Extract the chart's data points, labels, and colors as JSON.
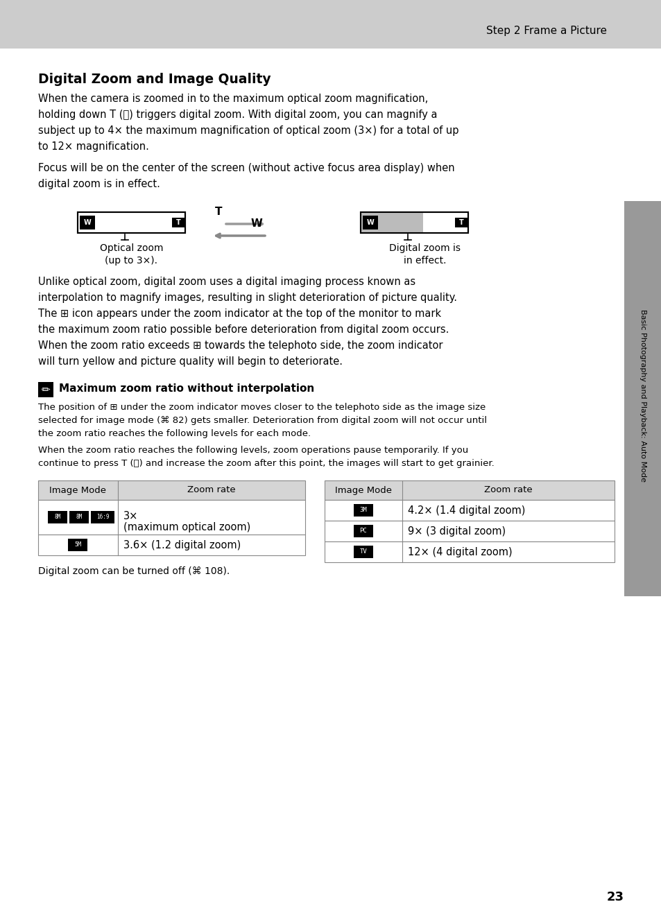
{
  "page_bg": "#ffffff",
  "header_bg": "#cccccc",
  "header_text": "Step 2 Frame a Picture",
  "sidebar_bg": "#999999",
  "sidebar_text": "Basic Photography and Playback: Auto Mode",
  "page_number": "23",
  "section_title": "Digital Zoom and Image Quality",
  "para1": [
    "When the camera is zoomed in to the maximum optical zoom magnification,",
    "holding down T (ⓑ) triggers digital zoom. With digital zoom, you can magnify a",
    "subject up to 4× the maximum magnification of optical zoom (3×) for a total of up",
    "to 12× magnification."
  ],
  "para2": [
    "Focus will be on the center of the screen (without active focus area display) when",
    "digital zoom is in effect."
  ],
  "para3": [
    "Unlike optical zoom, digital zoom uses a digital imaging process known as",
    "interpolation to magnify images, resulting in slight deterioration of picture quality.",
    "The ⊞ icon appears under the zoom indicator at the top of the monitor to mark",
    "the maximum zoom ratio possible before deterioration from digital zoom occurs.",
    "When the zoom ratio exceeds ⊞ towards the telephoto side, the zoom indicator",
    "will turn yellow and picture quality will begin to deteriorate."
  ],
  "note_title": "Maximum zoom ratio without interpolation",
  "note_para1": [
    "The position of ⊞ under the zoom indicator moves closer to the telephoto side as the image size",
    "selected for image mode (⌘ 82) gets smaller. Deterioration from digital zoom will not occur until",
    "the zoom ratio reaches the following levels for each mode."
  ],
  "note_para2": [
    "When the zoom ratio reaches the following levels, zoom operations pause temporarily. If you",
    "continue to press T (ⓑ) and increase the zoom after this point, the images will start to get grainier."
  ],
  "table1_icons_row1": [
    "8M",
    "8M",
    "16:9"
  ],
  "table1_zoom_row1_line1": "3×",
  "table1_zoom_row1_line2": "(maximum optical zoom)",
  "table1_icon_row2": "5M",
  "table1_zoom_row2": "3.6× (1.2 digital zoom)",
  "table2_rows": [
    [
      "3M",
      "4.2× (1.4 digital zoom)"
    ],
    [
      "PC",
      "9× (3 digital zoom)"
    ],
    [
      "TV",
      "12× (4 digital zoom)"
    ]
  ],
  "footer_note": "Digital zoom can be turned off (⌘ 108).",
  "table_header_bg": "#d5d5d5",
  "table_border": "#888888"
}
